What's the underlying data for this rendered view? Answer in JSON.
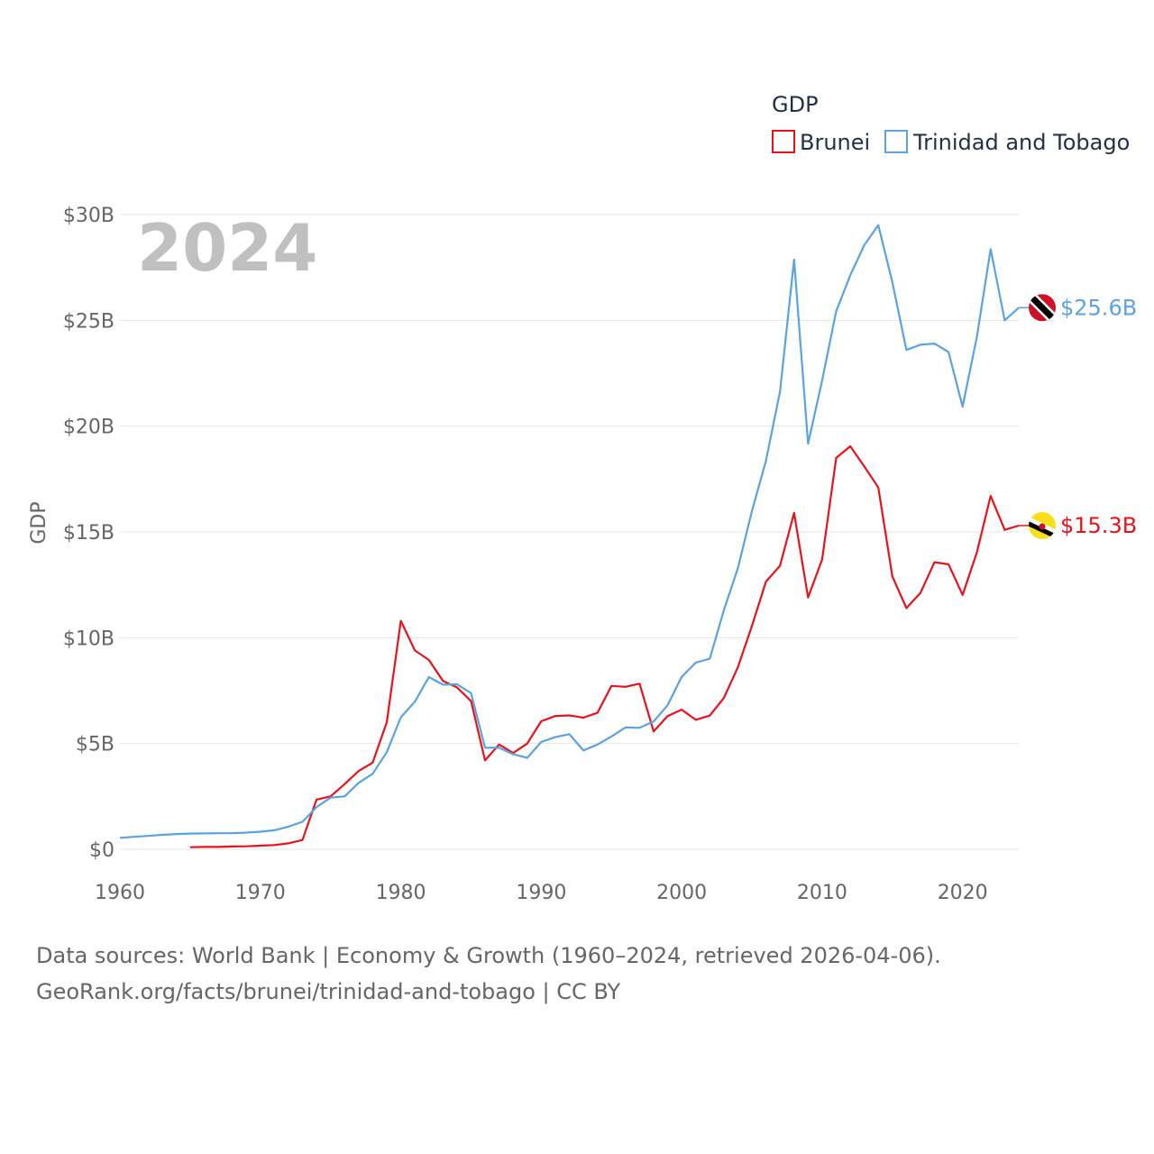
{
  "chart_data": {
    "type": "line",
    "title": "GDP",
    "ylabel": "GDP",
    "xlabel": "",
    "current_year_label": "2024",
    "xlim": [
      1960,
      2024
    ],
    "ylim": [
      0,
      30
    ],
    "unit": "USD billions",
    "x_ticks": [
      "1960",
      "1970",
      "1980",
      "1990",
      "2000",
      "2010",
      "2020"
    ],
    "x_tick_values": [
      1960,
      1970,
      1980,
      1990,
      2000,
      2010,
      2020
    ],
    "y_ticks": [
      "$0",
      "$5B",
      "$10B",
      "$15B",
      "$20B",
      "$25B",
      "$30B"
    ],
    "y_tick_values": [
      0,
      5,
      10,
      15,
      20,
      25,
      30
    ],
    "legend_position": "top-right",
    "series": [
      {
        "name": "Brunei",
        "color": "#e8131a",
        "end_label": "$15.3B",
        "flag_icon": "brunei-flag-icon",
        "points": [
          [
            1965,
            0.1
          ],
          [
            1966,
            0.11
          ],
          [
            1967,
            0.11
          ],
          [
            1968,
            0.13
          ],
          [
            1969,
            0.14
          ],
          [
            1970,
            0.17
          ],
          [
            1971,
            0.2
          ],
          [
            1972,
            0.28
          ],
          [
            1973,
            0.44
          ],
          [
            1974,
            2.35
          ],
          [
            1975,
            2.5
          ],
          [
            1976,
            3.08
          ],
          [
            1977,
            3.7
          ],
          [
            1978,
            4.1
          ],
          [
            1979,
            6.0
          ],
          [
            1980,
            10.8
          ],
          [
            1981,
            9.4
          ],
          [
            1982,
            8.95
          ],
          [
            1983,
            7.96
          ],
          [
            1984,
            7.65
          ],
          [
            1985,
            7.0
          ],
          [
            1986,
            4.2
          ],
          [
            1987,
            4.95
          ],
          [
            1988,
            4.55
          ],
          [
            1989,
            5.0
          ],
          [
            1990,
            6.05
          ],
          [
            1991,
            6.3
          ],
          [
            1992,
            6.33
          ],
          [
            1993,
            6.22
          ],
          [
            1994,
            6.45
          ],
          [
            1995,
            7.72
          ],
          [
            1996,
            7.68
          ],
          [
            1997,
            7.83
          ],
          [
            1998,
            5.57
          ],
          [
            1999,
            6.3
          ],
          [
            2000,
            6.6
          ],
          [
            2001,
            6.12
          ],
          [
            2002,
            6.32
          ],
          [
            2003,
            7.15
          ],
          [
            2004,
            8.6
          ],
          [
            2005,
            10.55
          ],
          [
            2006,
            12.65
          ],
          [
            2007,
            13.4
          ],
          [
            2008,
            15.9
          ],
          [
            2009,
            11.9
          ],
          [
            2010,
            13.7
          ],
          [
            2011,
            18.5
          ],
          [
            2012,
            19.05
          ],
          [
            2013,
            18.1
          ],
          [
            2014,
            17.1
          ],
          [
            2015,
            12.9
          ],
          [
            2016,
            11.4
          ],
          [
            2017,
            12.12
          ],
          [
            2018,
            13.57
          ],
          [
            2019,
            13.47
          ],
          [
            2020,
            12.02
          ],
          [
            2021,
            14.0
          ],
          [
            2022,
            16.7
          ],
          [
            2023,
            15.1
          ],
          [
            2024,
            15.3
          ]
        ]
      },
      {
        "name": "Trinidad and Tobago",
        "color": "#5aa3e0",
        "end_label": "$25.6B",
        "flag_icon": "trinidad-and-tobago-flag-icon",
        "points": [
          [
            1960,
            0.54
          ],
          [
            1961,
            0.59
          ],
          [
            1962,
            0.63
          ],
          [
            1963,
            0.68
          ],
          [
            1964,
            0.72
          ],
          [
            1965,
            0.74
          ],
          [
            1966,
            0.75
          ],
          [
            1967,
            0.76
          ],
          [
            1968,
            0.76
          ],
          [
            1969,
            0.79
          ],
          [
            1970,
            0.83
          ],
          [
            1971,
            0.9
          ],
          [
            1972,
            1.07
          ],
          [
            1973,
            1.3
          ],
          [
            1974,
            2.0
          ],
          [
            1975,
            2.44
          ],
          [
            1976,
            2.5
          ],
          [
            1977,
            3.14
          ],
          [
            1978,
            3.57
          ],
          [
            1979,
            4.59
          ],
          [
            1980,
            6.24
          ],
          [
            1981,
            6.97
          ],
          [
            1982,
            8.14
          ],
          [
            1983,
            7.78
          ],
          [
            1984,
            7.8
          ],
          [
            1985,
            7.38
          ],
          [
            1986,
            4.8
          ],
          [
            1987,
            4.8
          ],
          [
            1988,
            4.49
          ],
          [
            1989,
            4.32
          ],
          [
            1990,
            5.07
          ],
          [
            1991,
            5.3
          ],
          [
            1992,
            5.44
          ],
          [
            1993,
            4.67
          ],
          [
            1994,
            4.95
          ],
          [
            1995,
            5.33
          ],
          [
            1996,
            5.76
          ],
          [
            1997,
            5.74
          ],
          [
            1998,
            6.04
          ],
          [
            1999,
            6.81
          ],
          [
            2000,
            8.15
          ],
          [
            2001,
            8.82
          ],
          [
            2002,
            9.01
          ],
          [
            2003,
            11.3
          ],
          [
            2004,
            13.28
          ],
          [
            2005,
            15.98
          ],
          [
            2006,
            18.37
          ],
          [
            2007,
            21.64
          ],
          [
            2008,
            27.87
          ],
          [
            2009,
            19.17
          ],
          [
            2010,
            22.16
          ],
          [
            2011,
            25.43
          ],
          [
            2012,
            27.13
          ],
          [
            2013,
            28.55
          ],
          [
            2014,
            29.5
          ],
          [
            2015,
            26.8
          ],
          [
            2016,
            23.6
          ],
          [
            2017,
            23.85
          ],
          [
            2018,
            23.9
          ],
          [
            2019,
            23.5
          ],
          [
            2020,
            20.92
          ],
          [
            2021,
            24.16
          ],
          [
            2022,
            28.37
          ],
          [
            2023,
            25.0
          ],
          [
            2024,
            25.6
          ]
        ]
      }
    ]
  },
  "legend": {
    "title": "GDP",
    "items": [
      {
        "label": "Brunei",
        "color": "#e8131a"
      },
      {
        "label": "Trinidad and Tobago",
        "color": "#5aa3e0"
      }
    ]
  },
  "source": {
    "line1": "Data sources: World Bank | Economy & Growth (1960–2024, retrieved 2026-04-06).",
    "line2": "GeoRank.org/facts/brunei/trinidad-and-tobago | CC BY"
  }
}
